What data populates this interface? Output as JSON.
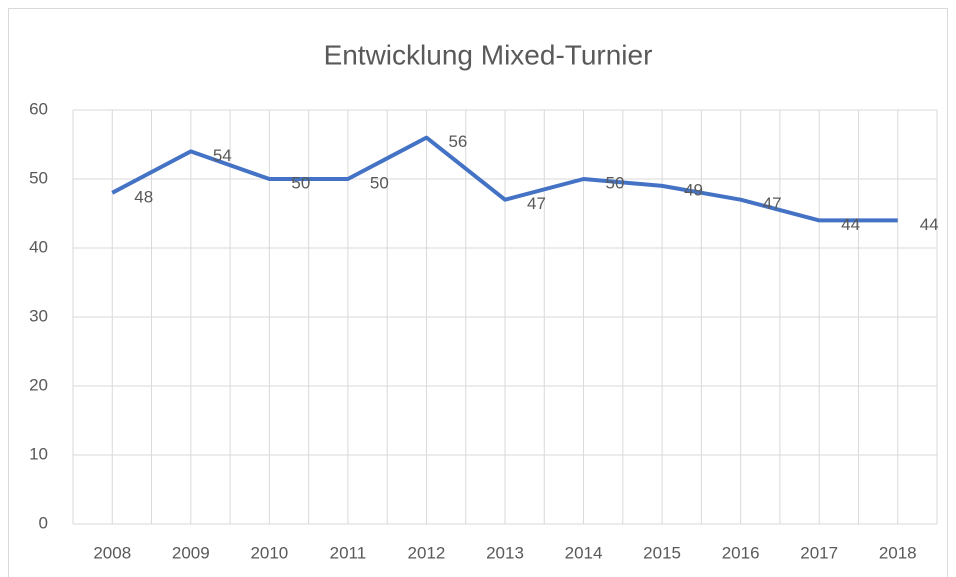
{
  "chart_data": {
    "type": "line",
    "title": "Entwicklung Mixed-Turnier",
    "categories": [
      "2008",
      "2009",
      "2010",
      "2011",
      "2012",
      "2013",
      "2014",
      "2015",
      "2016",
      "2017",
      "2018"
    ],
    "series": [
      {
        "name": "Mixed-Turnier",
        "color": "#4472c4",
        "values": [
          48,
          54,
          50,
          50,
          56,
          47,
          50,
          49,
          47,
          44,
          44
        ]
      }
    ],
    "ylim": [
      0,
      60
    ],
    "yticks": [
      0,
      10,
      20,
      30,
      40,
      50,
      60
    ],
    "grid": true
  }
}
